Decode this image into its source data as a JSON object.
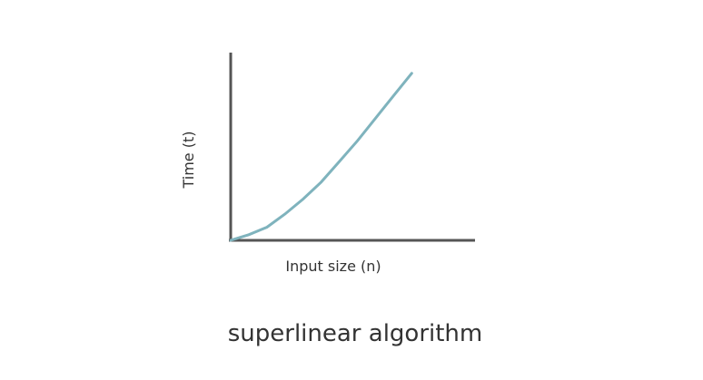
{
  "chart_data": {
    "type": "line",
    "xlabel": "Input size (n)",
    "ylabel": "Time (t)",
    "caption": "superlinear algorithm",
    "grid": false,
    "legend": "none",
    "series": [
      {
        "color": "#7fb3bd",
        "x": [
          0,
          0.1,
          0.2,
          0.3,
          0.4,
          0.5,
          0.6,
          0.7,
          0.8,
          0.9,
          1.0
        ],
        "y": [
          0,
          0.03,
          0.07,
          0.14,
          0.22,
          0.31,
          0.42,
          0.53,
          0.65,
          0.77,
          0.89
        ]
      }
    ],
    "xlim": [
      0,
      1.35
    ],
    "ylim": [
      0,
      1.0
    ]
  }
}
